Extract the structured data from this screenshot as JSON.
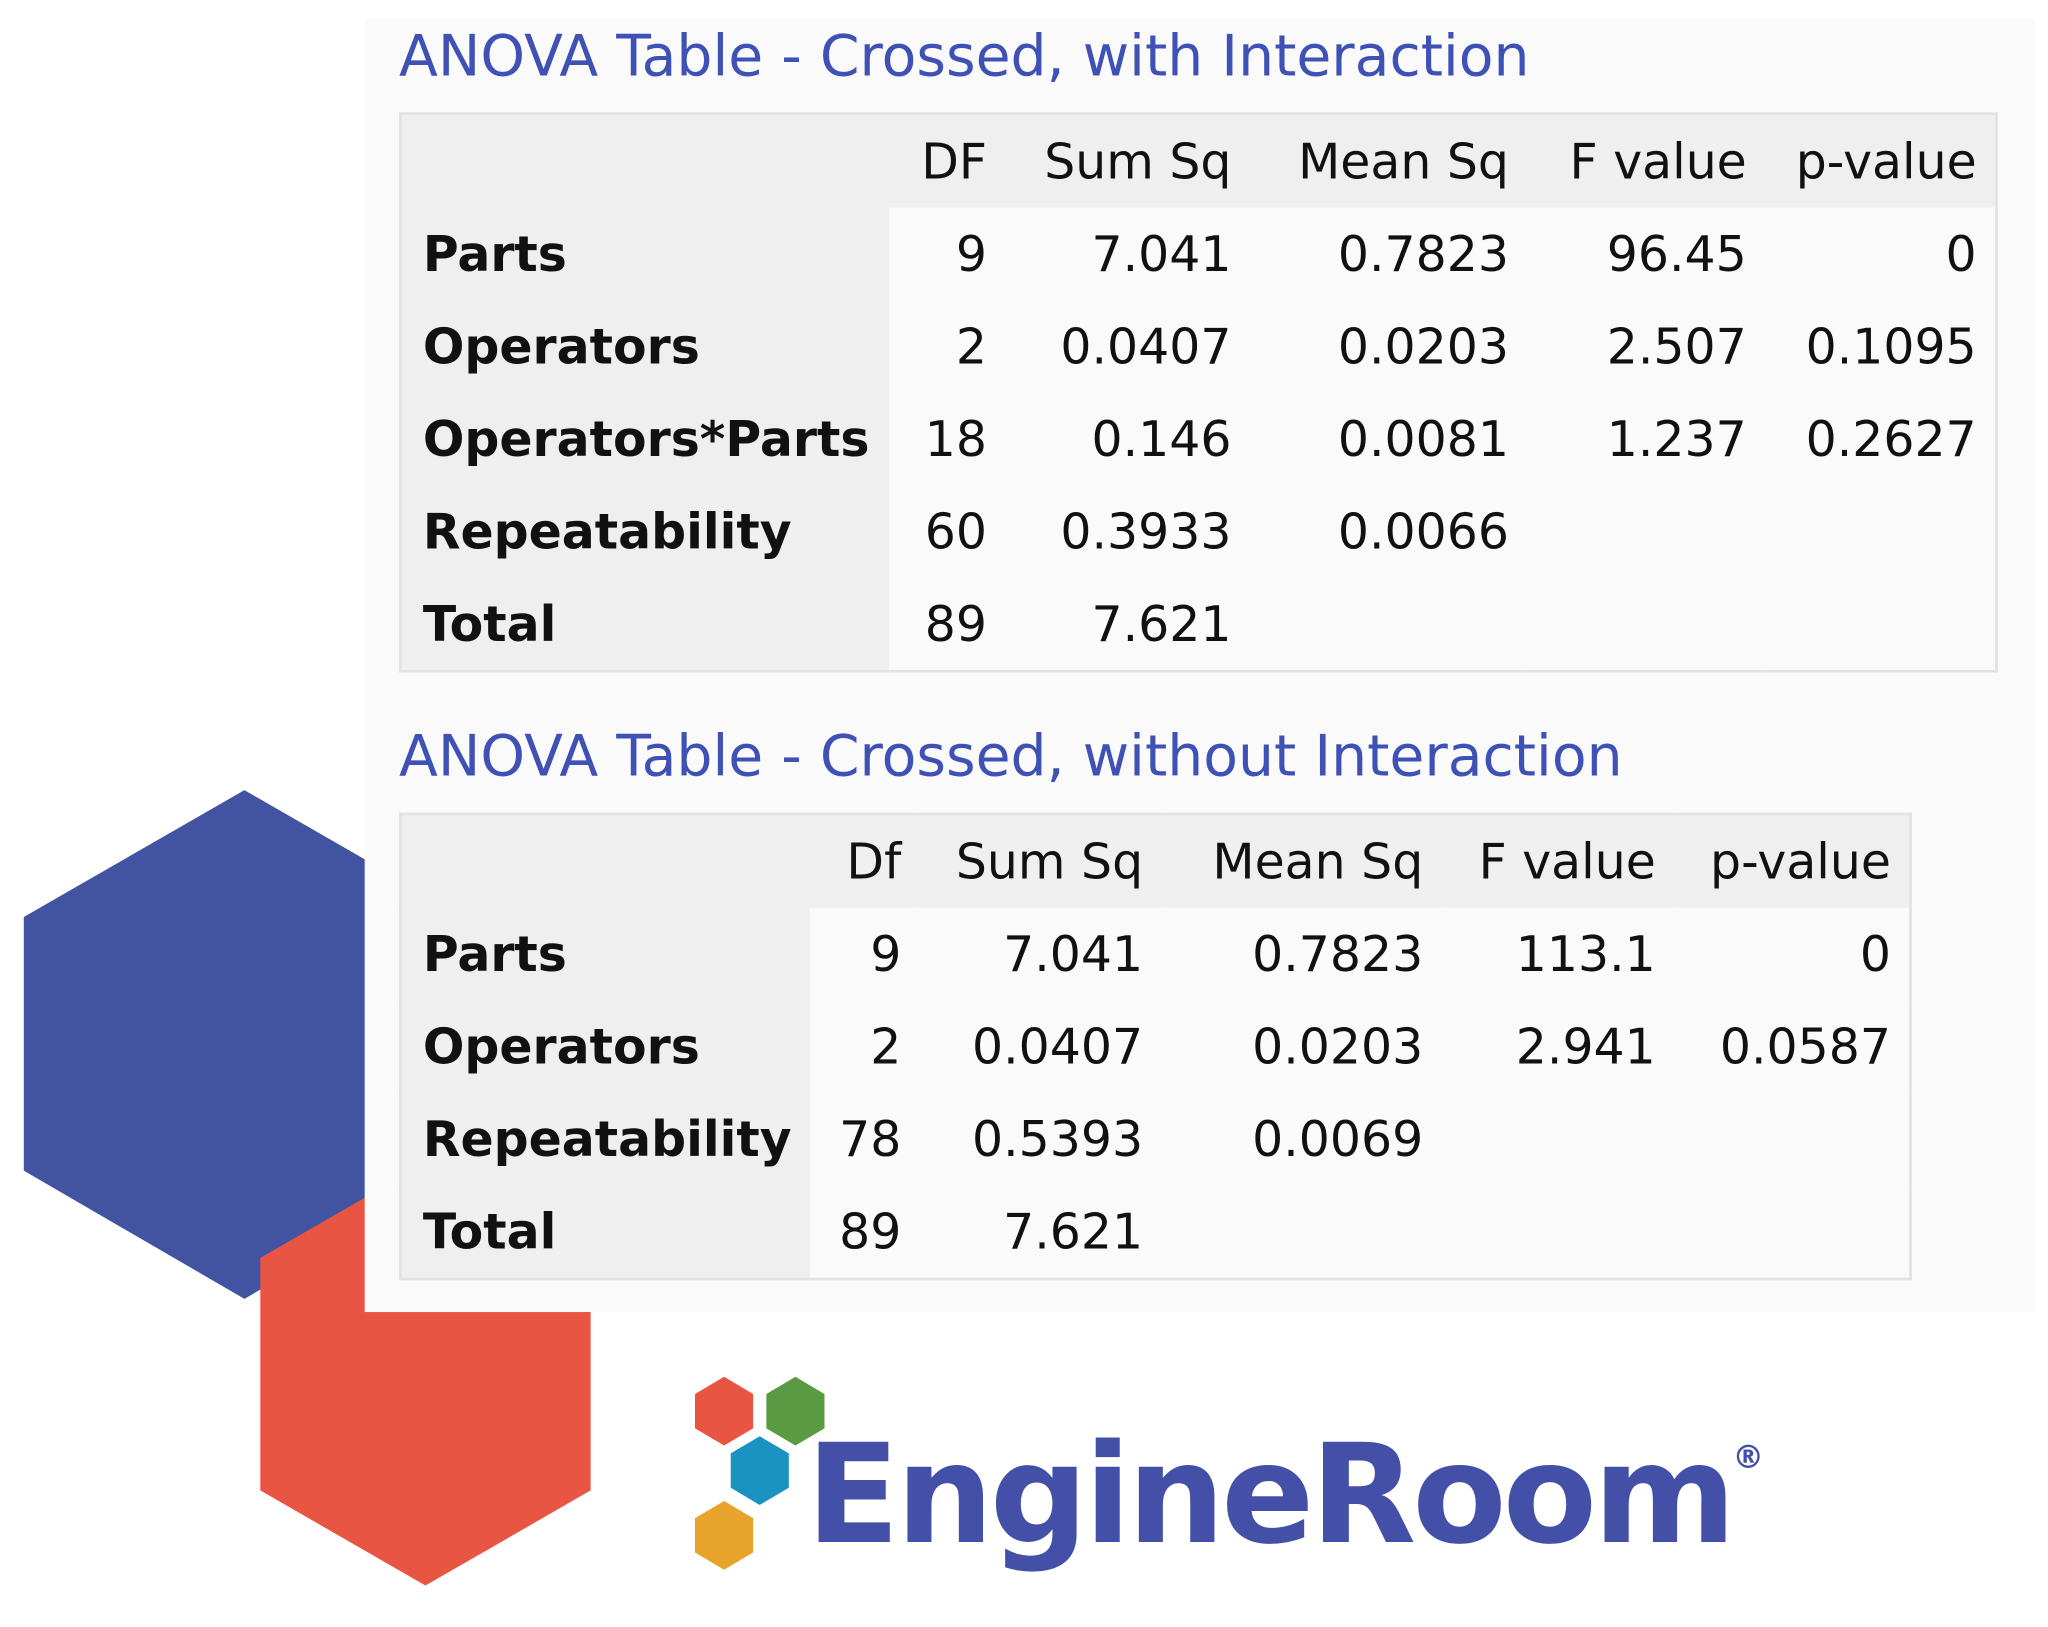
{
  "tables": [
    {
      "title": "ANOVA Table - Crossed, with Interaction",
      "columns": [
        "DF",
        "Sum Sq",
        "Mean Sq",
        "F value",
        "p-value"
      ],
      "rows": [
        {
          "label": "Parts",
          "cells": [
            9,
            7.041,
            0.7823,
            96.45,
            0
          ]
        },
        {
          "label": "Operators",
          "cells": [
            2,
            0.0407,
            0.0203,
            2.507,
            0.1095
          ]
        },
        {
          "label": "Operators*Parts",
          "cells": [
            18,
            0.146,
            0.0081,
            1.237,
            0.2627
          ]
        },
        {
          "label": "Repeatability",
          "cells": [
            60,
            0.3933,
            0.0066
          ]
        },
        {
          "label": "Total",
          "cells": [
            89,
            7.621
          ]
        }
      ]
    },
    {
      "title": "ANOVA Table - Crossed, without Interaction",
      "columns": [
        "Df",
        "Sum Sq",
        "Mean Sq",
        "F value",
        "p-value"
      ],
      "rows": [
        {
          "label": "Parts",
          "cells": [
            9,
            7.041,
            0.7823,
            113.1,
            0
          ]
        },
        {
          "label": "Operators",
          "cells": [
            2,
            0.0407,
            0.0203,
            2.941,
            0.0587
          ]
        },
        {
          "label": "Repeatability",
          "cells": [
            78,
            0.5393,
            0.0069
          ]
        },
        {
          "label": "Total",
          "cells": [
            89,
            7.621
          ]
        }
      ]
    }
  ],
  "logo": {
    "text": "EngineRoom",
    "mark": "®"
  }
}
